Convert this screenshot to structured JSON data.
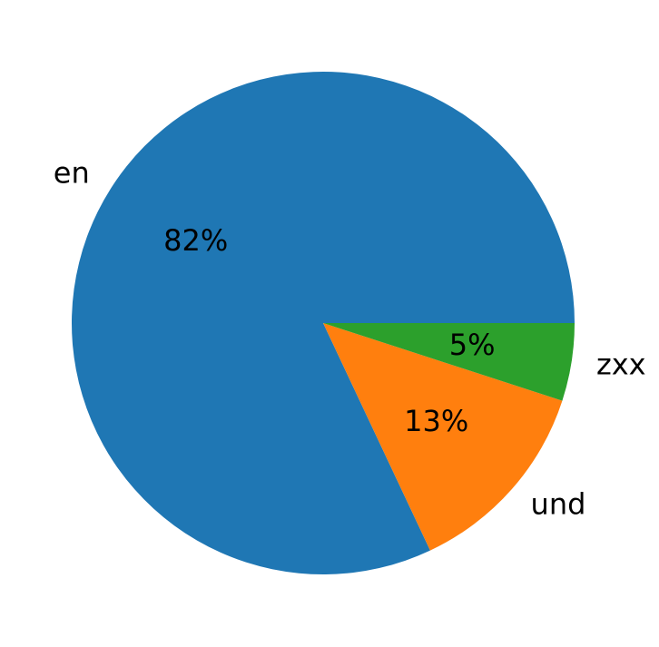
{
  "chart_data": {
    "type": "pie",
    "categories": [
      "en",
      "und",
      "zxx"
    ],
    "values": [
      82,
      13,
      5
    ],
    "value_labels": [
      "82%",
      "13%",
      "5%"
    ],
    "colors": [
      "#1f77b4",
      "#ff7f0e",
      "#2ca02c"
    ]
  }
}
